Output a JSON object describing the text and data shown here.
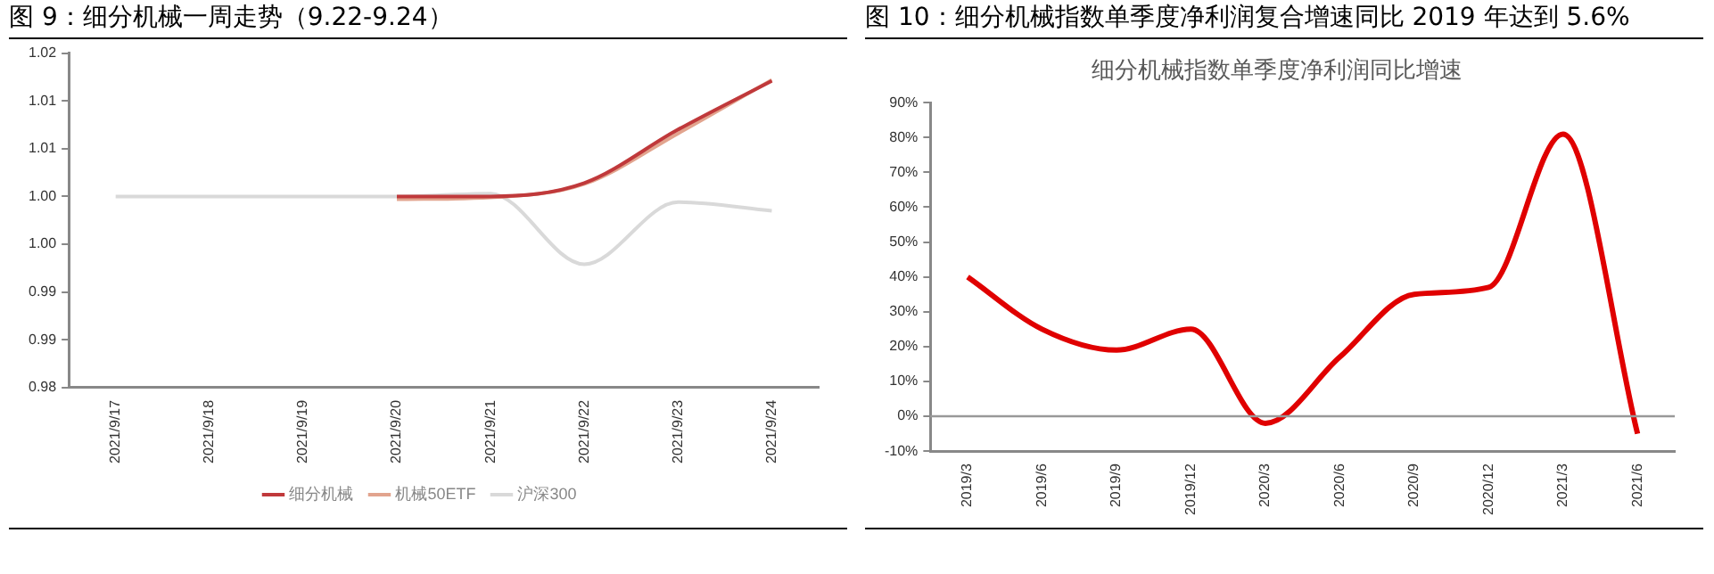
{
  "chart_data": [
    {
      "type": "line",
      "title": "图 9：细分机械一周走势（9.22-9.24）",
      "categories": [
        "2021/9/17",
        "2021/9/18",
        "2021/9/19",
        "2021/9/20",
        "2021/9/21",
        "2021/9/22",
        "2021/9/23",
        "2021/9/24"
      ],
      "series": [
        {
          "name": "细分机械",
          "color": "#c0393b",
          "values": [
            null,
            null,
            null,
            1.0,
            1.0,
            1.0014,
            1.007,
            1.0121
          ]
        },
        {
          "name": "机械50ETF",
          "color": "#e2a48e",
          "values": [
            null,
            null,
            null,
            0.9997,
            0.9999,
            1.0013,
            1.0066,
            1.0122
          ]
        },
        {
          "name": "沪深300",
          "color": "#d9d9d9",
          "values": [
            1.0,
            1.0,
            1.0,
            1.0,
            1.0003,
            0.9929,
            0.9994,
            0.9985
          ]
        }
      ],
      "ylim": [
        0.98,
        1.015
      ],
      "yticks": [
        {
          "value": 0.98,
          "label": "0.98"
        },
        {
          "value": 0.985,
          "label": "0.99"
        },
        {
          "value": 0.99,
          "label": "0.99"
        },
        {
          "value": 0.995,
          "label": "1.00"
        },
        {
          "value": 1.0,
          "label": "1.00"
        },
        {
          "value": 1.005,
          "label": "1.01"
        },
        {
          "value": 1.01,
          "label": "1.01"
        },
        {
          "value": 1.015,
          "label": "1.02"
        }
      ],
      "grid": false,
      "legend": "bottom",
      "marker": "none",
      "line_style": "solid"
    },
    {
      "type": "line",
      "title": "图 10：细分机械指数单季度净利润复合增速同比 2019 年达到 5.6%",
      "subtitle": "细分机械指数单季度净利润同比增速",
      "categories": [
        "2019/3",
        "2019/6",
        "2019/9",
        "2019/12",
        "2020/3",
        "2020/6",
        "2020/9",
        "2020/12",
        "2021/3",
        "2021/6"
      ],
      "series": [
        {
          "color": "#e00000",
          "values": [
            40,
            25,
            19,
            25,
            -2,
            17,
            35,
            37,
            81,
            -5
          ]
        }
      ],
      "ylim": [
        -10,
        90
      ],
      "yticks": [
        {
          "value": -10,
          "label": "-10%"
        },
        {
          "value": 0,
          "label": "0%"
        },
        {
          "value": 10,
          "label": "10%"
        },
        {
          "value": 20,
          "label": "20%"
        },
        {
          "value": 30,
          "label": "30%"
        },
        {
          "value": 40,
          "label": "40%"
        },
        {
          "value": 50,
          "label": "50%"
        },
        {
          "value": 60,
          "label": "60%"
        },
        {
          "value": 70,
          "label": "70%"
        },
        {
          "value": 80,
          "label": "80%"
        },
        {
          "value": 90,
          "label": "90%"
        }
      ],
      "ref_lines": [
        {
          "axis": "y",
          "value": 0,
          "color": "#999999"
        }
      ],
      "grid": false,
      "legend": false,
      "marker": "none",
      "line_style": "solid"
    }
  ]
}
